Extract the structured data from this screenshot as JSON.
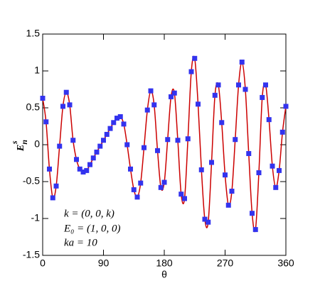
{
  "chart_data": {
    "type": "line",
    "x_label": "θ",
    "y_label": {
      "base": "E",
      "sub": "n",
      "sup": "s"
    },
    "annotations": [
      "k = (0, 0, k)",
      "E₀ = (1, 0, 0)",
      "ka = 10"
    ],
    "xlim": [
      0,
      360
    ],
    "xticks": [
      0,
      90,
      180,
      270,
      360
    ],
    "ylim": [
      -1.5,
      1.5
    ],
    "yticks": [
      -1.5,
      -1,
      -0.5,
      0,
      0.5,
      1,
      1.5
    ],
    "line_color": "#cc0000",
    "marker_color": "#3333ee",
    "x": [
      0,
      5,
      10,
      15,
      20,
      25,
      30,
      35,
      40,
      45,
      50,
      55,
      60,
      65,
      70,
      75,
      80,
      85,
      90,
      95,
      100,
      105,
      110,
      115,
      120,
      125,
      130,
      135,
      140,
      145,
      150,
      155,
      160,
      165,
      170,
      175,
      180,
      185,
      190,
      195,
      200,
      205,
      210,
      215,
      220,
      225,
      230,
      235,
      240,
      245,
      250,
      255,
      260,
      265,
      270,
      275,
      280,
      285,
      290,
      295,
      300,
      305,
      310,
      315,
      320,
      325,
      330,
      335,
      340,
      345,
      350,
      355,
      360
    ],
    "values": [
      0.63,
      0.31,
      -0.33,
      -0.72,
      -0.56,
      -0.02,
      0.52,
      0.71,
      0.54,
      0.06,
      -0.2,
      -0.33,
      -0.37,
      -0.35,
      -0.27,
      -0.18,
      -0.1,
      -0.02,
      0.06,
      0.14,
      0.22,
      0.3,
      0.36,
      0.38,
      0.28,
      0.0,
      -0.33,
      -0.61,
      -0.71,
      -0.52,
      -0.04,
      0.47,
      0.73,
      0.54,
      -0.08,
      -0.58,
      -0.51,
      0.07,
      0.65,
      0.7,
      0.06,
      -0.67,
      -0.73,
      0.08,
      0.99,
      1.17,
      0.55,
      -0.34,
      -1.01,
      -1.05,
      -0.24,
      0.67,
      0.81,
      0.3,
      -0.41,
      -0.82,
      -0.63,
      0.07,
      0.81,
      1.12,
      0.75,
      -0.12,
      -0.93,
      -1.15,
      -0.38,
      0.64,
      0.81,
      0.34,
      -0.29,
      -0.58,
      -0.35,
      0.17,
      0.52
    ]
  }
}
